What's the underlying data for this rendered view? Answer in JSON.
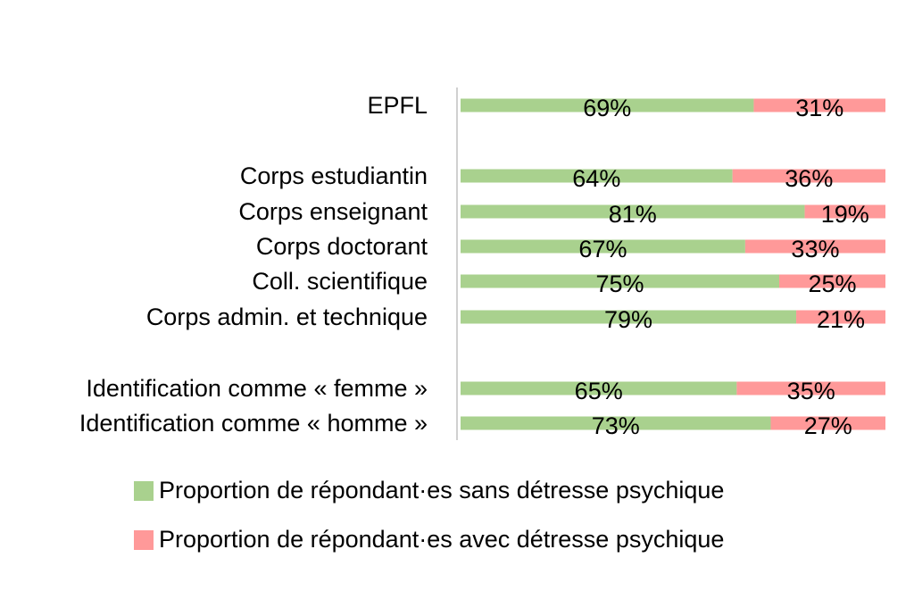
{
  "chart_data": {
    "type": "bar",
    "stacked": true,
    "orientation": "horizontal",
    "percent": true,
    "categories": [
      "EPFL",
      "Corps estudiantin",
      "Corps enseignant",
      "Corps doctorant",
      "Coll. scientifique",
      "Corps admin. et technique",
      "Identification comme « femme »",
      "Identification comme « homme »"
    ],
    "series": [
      {
        "name": "Proportion de répondant·es sans détresse psychique",
        "color": "#a9d18e",
        "values": [
          69,
          64,
          81,
          67,
          75,
          79,
          65,
          73
        ]
      },
      {
        "name": "Proportion de répondant·es avec détresse psychique",
        "color": "#ff9999",
        "values": [
          31,
          36,
          19,
          33,
          25,
          21,
          35,
          27
        ]
      }
    ],
    "data_labels": [
      [
        "69%",
        "64%",
        "81%",
        "67%",
        "75%",
        "79%",
        "65%",
        "73%"
      ],
      [
        "31%",
        "36%",
        "19%",
        "33%",
        "25%",
        "21%",
        "35%",
        "27%"
      ]
    ],
    "xlim": [
      0,
      100
    ],
    "grid": false,
    "legend_placement": "bottom"
  }
}
